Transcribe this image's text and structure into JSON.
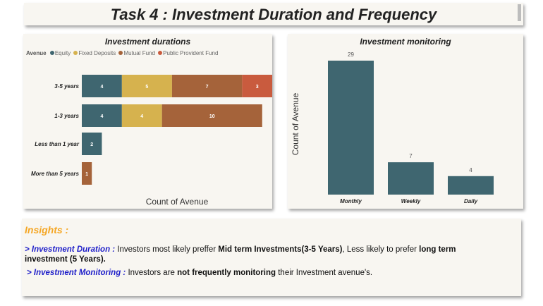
{
  "page_title": "Task 4 : Investment Duration and Frequency",
  "colors": {
    "equity": "#3f6670",
    "fixed_deposits": "#d6b24e",
    "mutual_fund": "#a5633a",
    "ppf": "#c95b3e",
    "monitoring": "#3f6670",
    "insights_heading": "#f5a623",
    "insights_key": "#1f1fc9"
  },
  "chart_data": [
    {
      "type": "bar",
      "orientation": "horizontal",
      "stacked": true,
      "title": "Investment durations",
      "xlabel": "Count of Avenue",
      "ylabel": "",
      "legend_title": "Avenue",
      "legend_position": "top-left",
      "categories": [
        "3-5 years",
        "1-3 years",
        "Less than 1 year",
        "More than 5 years"
      ],
      "series": [
        {
          "name": "Equity",
          "values": [
            4,
            4,
            2,
            0
          ]
        },
        {
          "name": "Fixed Deposits",
          "values": [
            5,
            4,
            0,
            0
          ]
        },
        {
          "name": "Mutual Fund",
          "values": [
            7,
            10,
            0,
            1
          ]
        },
        {
          "name": "Public Provident Fund",
          "values": [
            3,
            0,
            0,
            0
          ]
        }
      ],
      "xlim": [
        0,
        19
      ]
    },
    {
      "type": "bar",
      "orientation": "vertical",
      "title": "Investment monitoring",
      "xlabel": "",
      "ylabel": "Count of Avenue",
      "categories": [
        "Monthly",
        "Weekly",
        "Daily"
      ],
      "values": [
        29,
        7,
        4
      ],
      "ylim": [
        0,
        29
      ]
    }
  ],
  "insights": {
    "heading": "Insights :",
    "line1": {
      "key": "> Investment Duration :",
      "t1": " Investors most likely preffer ",
      "b1": "Mid term Investments(3-5 Years)",
      "t2": ", Less likely to prefer ",
      "b2": "long term",
      "b3": "investment (5 Years)."
    },
    "line2": {
      "key": "> Investment Monitoring :",
      "t1": " Investors are ",
      "b1": "not frequently monitoring",
      "t2": " their Investment avenue's."
    }
  }
}
